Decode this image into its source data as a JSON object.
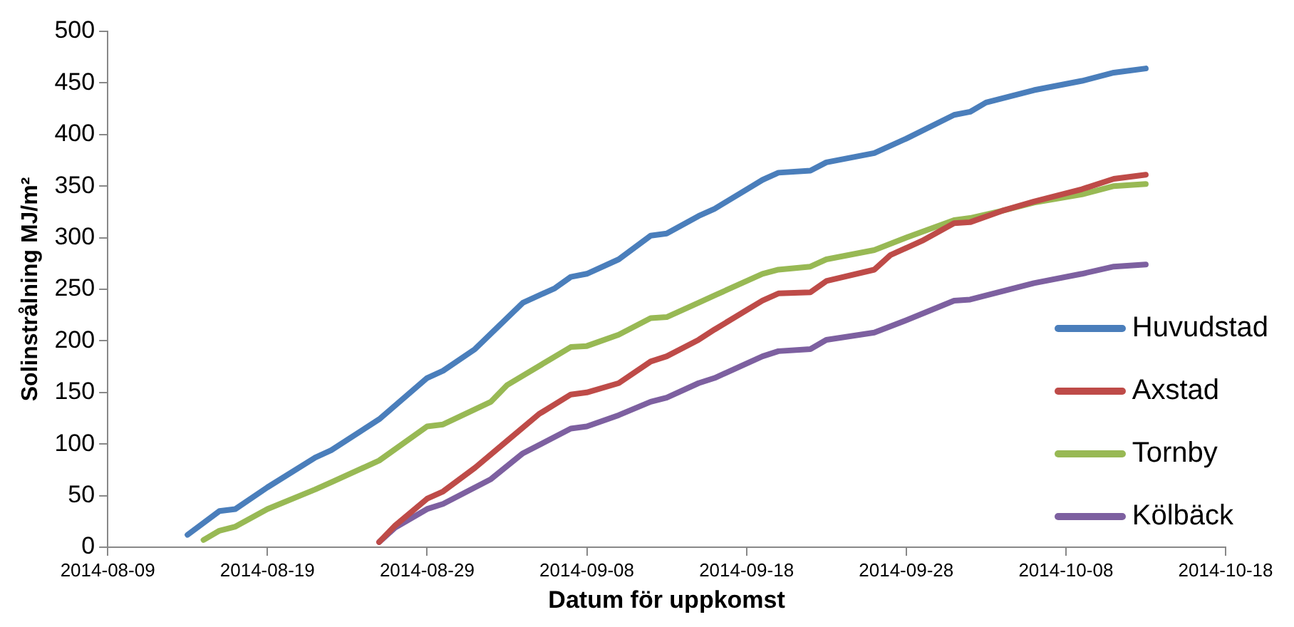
{
  "chart_data": {
    "type": "line",
    "xlabel": "Datum för uppkomst",
    "ylabel": "Solinstrålning MJ/m²",
    "xlim": [
      "2014-08-09",
      "2014-10-18"
    ],
    "xticks": [
      "2014-08-09",
      "2014-08-19",
      "2014-08-29",
      "2014-09-08",
      "2014-09-18",
      "2014-09-28",
      "2014-10-08",
      "2014-10-18"
    ],
    "ylim": [
      0,
      500
    ],
    "yticks": [
      0,
      50,
      100,
      150,
      200,
      250,
      300,
      350,
      400,
      450,
      500
    ],
    "grid": false,
    "legend": "right",
    "series": [
      {
        "name": "Huvudstad",
        "color": "#4a7ebb",
        "x": [
          "2014-08-14",
          "2014-08-16",
          "2014-08-17",
          "2014-08-19",
          "2014-08-22",
          "2014-08-23",
          "2014-08-26",
          "2014-08-29",
          "2014-08-30",
          "2014-09-01",
          "2014-09-04",
          "2014-09-06",
          "2014-09-07",
          "2014-09-08",
          "2014-09-10",
          "2014-09-12",
          "2014-09-13",
          "2014-09-15",
          "2014-09-16",
          "2014-09-19",
          "2014-09-20",
          "2014-09-22",
          "2014-09-23",
          "2014-09-26",
          "2014-09-28",
          "2014-10-01",
          "2014-10-02",
          "2014-10-03",
          "2014-10-06",
          "2014-10-09",
          "2014-10-11",
          "2014-10-13"
        ],
        "values": [
          12,
          35,
          37,
          58,
          87,
          94,
          124,
          164,
          171,
          192,
          237,
          251,
          262,
          265,
          279,
          302,
          304,
          321,
          328,
          356,
          363,
          365,
          373,
          382,
          396,
          419,
          422,
          431,
          443,
          452,
          460,
          464
        ]
      },
      {
        "name": "Axstad",
        "color": "#be4b48",
        "x": [
          "2014-08-26",
          "2014-08-27",
          "2014-08-29",
          "2014-08-30",
          "2014-09-01",
          "2014-09-03",
          "2014-09-05",
          "2014-09-07",
          "2014-09-08",
          "2014-09-10",
          "2014-09-12",
          "2014-09-13",
          "2014-09-15",
          "2014-09-16",
          "2014-09-19",
          "2014-09-20",
          "2014-09-22",
          "2014-09-23",
          "2014-09-26",
          "2014-09-27",
          "2014-09-29",
          "2014-10-01",
          "2014-10-02",
          "2014-10-04",
          "2014-10-06",
          "2014-10-09",
          "2014-10-11",
          "2014-10-13"
        ],
        "values": [
          5,
          21,
          47,
          54,
          77,
          103,
          129,
          148,
          150,
          159,
          180,
          185,
          201,
          211,
          239,
          246,
          247,
          258,
          269,
          283,
          297,
          314,
          315,
          326,
          335,
          347,
          357,
          361
        ]
      },
      {
        "name": "Tornby",
        "color": "#98b954",
        "x": [
          "2014-08-15",
          "2014-08-16",
          "2014-08-17",
          "2014-08-19",
          "2014-08-22",
          "2014-08-23",
          "2014-08-26",
          "2014-08-29",
          "2014-08-30",
          "2014-09-02",
          "2014-09-03",
          "2014-09-07",
          "2014-09-08",
          "2014-09-10",
          "2014-09-12",
          "2014-09-13",
          "2014-09-15",
          "2014-09-16",
          "2014-09-19",
          "2014-09-20",
          "2014-09-22",
          "2014-09-23",
          "2014-09-26",
          "2014-09-28",
          "2014-10-01",
          "2014-10-02",
          "2014-10-04",
          "2014-10-06",
          "2014-10-09",
          "2014-10-11",
          "2014-10-13"
        ],
        "values": [
          7,
          16,
          20,
          37,
          56,
          63,
          84,
          117,
          119,
          141,
          157,
          194,
          195,
          206,
          222,
          223,
          237,
          244,
          265,
          269,
          272,
          279,
          288,
          300,
          317,
          319,
          326,
          334,
          342,
          350,
          352
        ]
      },
      {
        "name": "Kölbäck",
        "color": "#7d60a0",
        "x": [
          "2014-08-26",
          "2014-08-27",
          "2014-08-29",
          "2014-08-30",
          "2014-09-02",
          "2014-09-04",
          "2014-09-07",
          "2014-09-08",
          "2014-09-10",
          "2014-09-12",
          "2014-09-13",
          "2014-09-15",
          "2014-09-16",
          "2014-09-19",
          "2014-09-20",
          "2014-09-22",
          "2014-09-23",
          "2014-09-26",
          "2014-09-28",
          "2014-10-01",
          "2014-10-02",
          "2014-10-04",
          "2014-10-06",
          "2014-10-09",
          "2014-10-11",
          "2014-10-13"
        ],
        "values": [
          5,
          19,
          37,
          42,
          66,
          91,
          115,
          117,
          128,
          141,
          145,
          159,
          164,
          185,
          190,
          192,
          201,
          208,
          220,
          239,
          240,
          248,
          256,
          265,
          272,
          274
        ]
      }
    ]
  }
}
